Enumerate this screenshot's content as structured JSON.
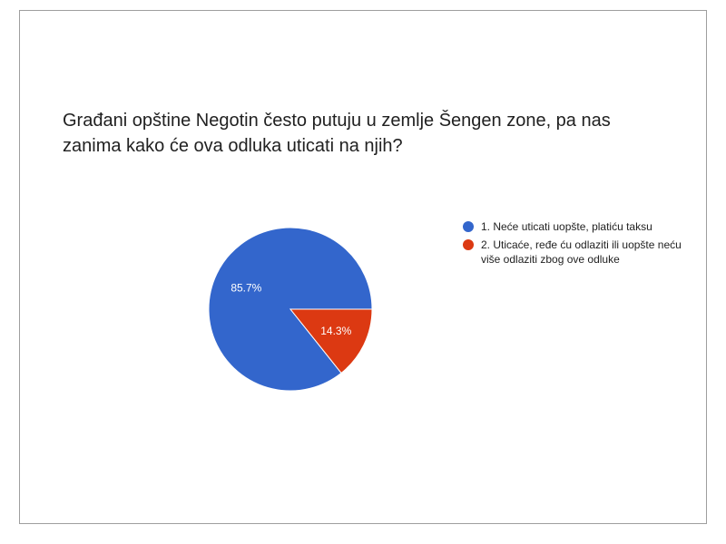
{
  "chart_data": {
    "type": "pie",
    "title": "Građani opštine Negotin često putuju u zemlje Šengen zone, pa nas zanima kako će ova odluka uticati na njih?",
    "slices": [
      {
        "label": "1. Neće uticati uopšte, platiću taksu",
        "value": 85.7,
        "display": "85.7%",
        "color": "#3366cc"
      },
      {
        "label": "2. Uticaće, ređe ću odlaziti ili uopšte neću više odlaziti zbog ove odluke",
        "value": 14.3,
        "display": "14.3%",
        "color": "#dc3912"
      }
    ],
    "legend_position": "right"
  }
}
